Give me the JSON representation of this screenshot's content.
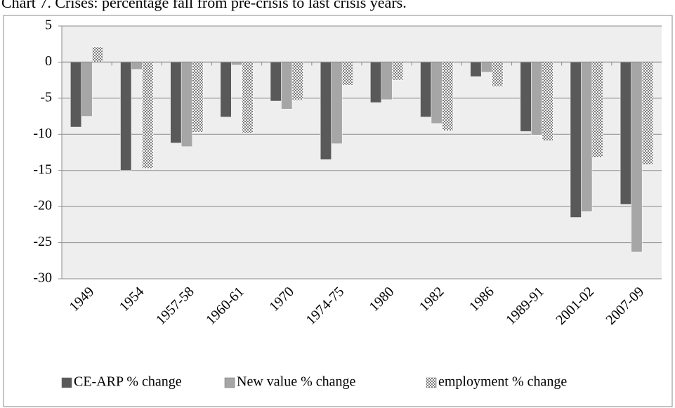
{
  "chart_data": {
    "type": "bar",
    "title": "Chart 7. Crises: percentage fall from pre-crisis to last crisis years.",
    "categories": [
      "1949",
      "1954",
      "1957-58",
      "1960-61",
      "1970",
      "1974-75",
      "1980",
      "1982",
      "1986",
      "1989-91",
      "2001-02",
      "2007-09"
    ],
    "series": [
      {
        "name": "CE-ARP % change",
        "color": "#595959",
        "values": [
          -9.0,
          -15.0,
          -11.2,
          -7.6,
          -5.4,
          -13.5,
          -5.6,
          -7.6,
          -2.0,
          -9.6,
          -21.5,
          -19.7
        ]
      },
      {
        "name": "New value % change",
        "color": "#a6a6a6",
        "values": [
          -7.5,
          -1.0,
          -11.7,
          -0.4,
          -6.5,
          -11.3,
          -5.2,
          -8.5,
          -1.4,
          -10.1,
          -20.7,
          -26.3
        ]
      },
      {
        "name": "employment % change",
        "color": "#7f7f7f",
        "pattern": "checker",
        "values": [
          2.1,
          -14.7,
          -9.7,
          -9.8,
          -5.3,
          -3.2,
          -2.5,
          -9.5,
          -3.4,
          -10.9,
          -13.2,
          -14.2
        ]
      }
    ],
    "ylim": [
      -30,
      5
    ],
    "yticks": [
      -30,
      -25,
      -20,
      -15,
      -10,
      -5,
      0,
      5
    ],
    "grid": true,
    "legend": "bottom"
  }
}
